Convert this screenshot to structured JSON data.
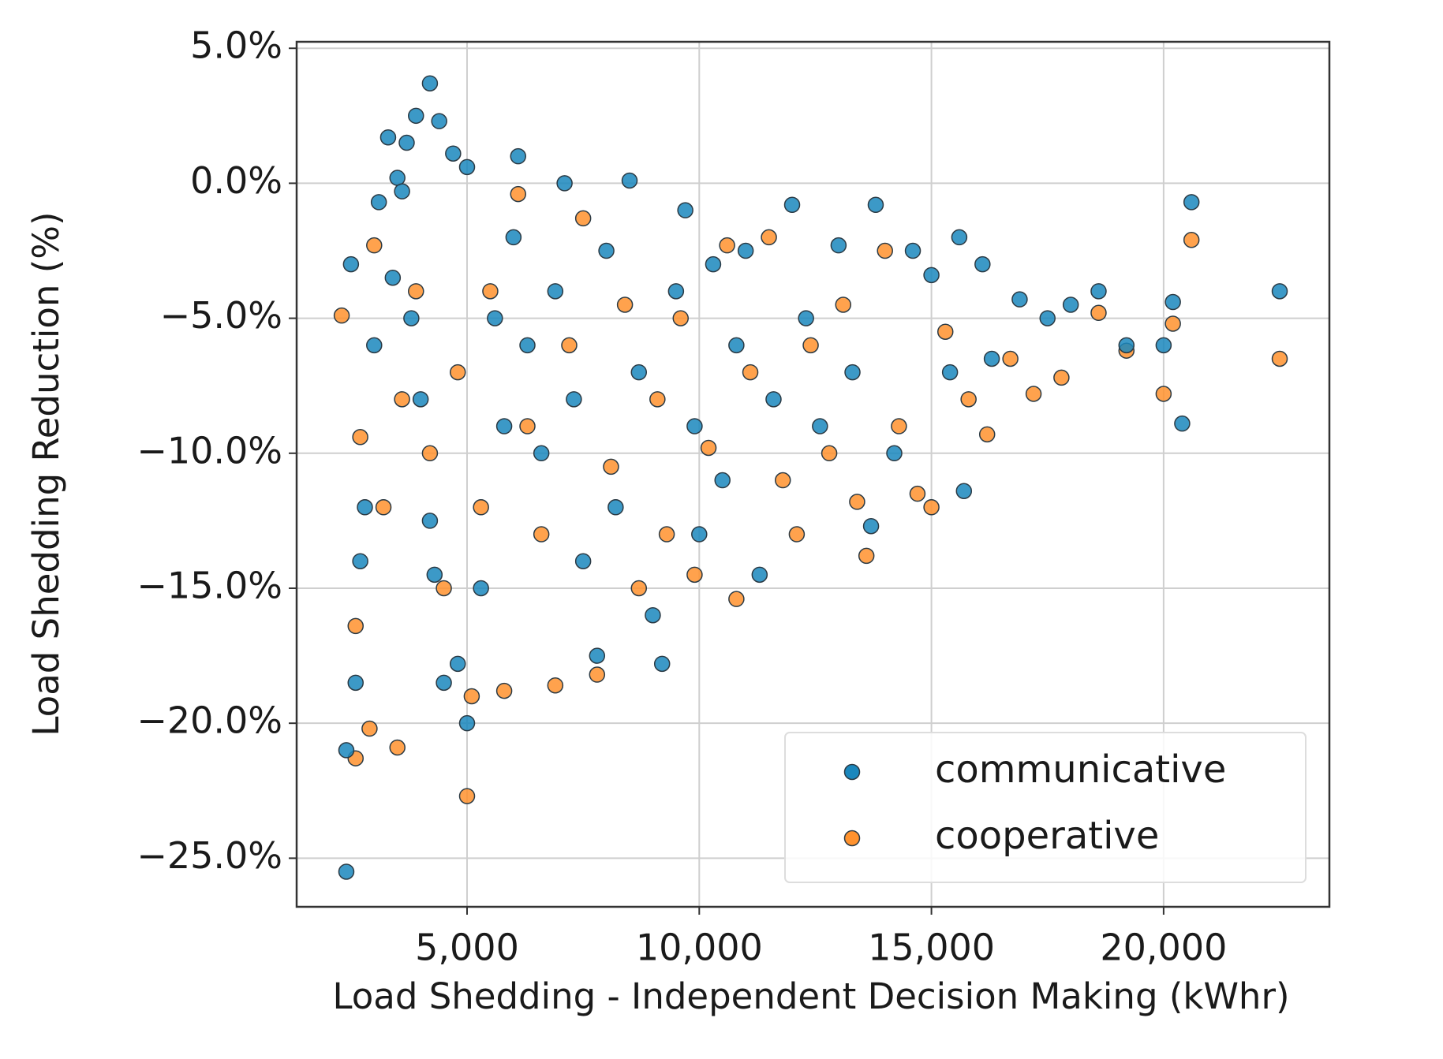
{
  "chart_data": {
    "type": "scatter",
    "xlabel": "Load Shedding - Independent Decision Making (kWhr)",
    "ylabel": "Load Shedding Reduction (%)",
    "xlim": [
      1330,
      23570
    ],
    "ylim": [
      -26.8,
      5.24
    ],
    "xticks": [
      {
        "value": 5000,
        "label": "5,000"
      },
      {
        "value": 10000,
        "label": "10,000"
      },
      {
        "value": 15000,
        "label": "15,000"
      },
      {
        "value": 20000,
        "label": "20,000"
      }
    ],
    "yticks": [
      {
        "value": 5,
        "label": "5.0%"
      },
      {
        "value": 0,
        "label": "0.0%"
      },
      {
        "value": -5,
        "label": "−5.0%"
      },
      {
        "value": -10,
        "label": "−10.0%"
      },
      {
        "value": -15,
        "label": "−15.0%"
      },
      {
        "value": -20,
        "label": "−20.0%"
      },
      {
        "value": -25,
        "label": "−25.0%"
      }
    ],
    "grid": true,
    "legend": "lower right",
    "series": [
      {
        "name": "communicative",
        "color": "#1a87bd",
        "x": [
          2400,
          2400,
          2500,
          2700,
          2600,
          2800,
          3000,
          3100,
          3300,
          3500,
          3600,
          3700,
          3900,
          4200,
          4400,
          4700,
          5000,
          3400,
          3800,
          4000,
          4200,
          4300,
          4500,
          4800,
          5000,
          5300,
          5600,
          5800,
          6000,
          6100,
          6300,
          6600,
          6900,
          7100,
          7300,
          7500,
          7800,
          8000,
          8200,
          8500,
          8700,
          9000,
          9200,
          9500,
          9700,
          9900,
          10000,
          10300,
          10500,
          10800,
          11000,
          11300,
          11600,
          12000,
          12300,
          12600,
          13000,
          13300,
          13700,
          13800,
          14200,
          14600,
          15000,
          15400,
          15600,
          15700,
          16100,
          16300,
          16900,
          17500,
          18000,
          18600,
          19200,
          20000,
          20200,
          20400,
          20600,
          22500
        ],
        "y": [
          -25.5,
          -21,
          -3,
          -14,
          -18.5,
          -12,
          -6,
          -0.7,
          1.7,
          0.2,
          -0.3,
          1.5,
          2.5,
          3.7,
          2.3,
          1.1,
          0.6,
          -3.5,
          -5,
          -8,
          -12.5,
          -14.5,
          -18.5,
          -17.8,
          -20,
          -15,
          -5,
          -9,
          -2,
          1,
          -6,
          -10,
          -4,
          0,
          -8,
          -14,
          -17.5,
          -2.5,
          -12,
          0.1,
          -7,
          -16,
          -17.8,
          -4,
          -1,
          -9,
          -13,
          -3,
          -11,
          -6,
          -2.5,
          -14.5,
          -8,
          -0.8,
          -5,
          -9,
          -2.3,
          -7,
          -12.7,
          -0.8,
          -10,
          -2.5,
          -3.4,
          -7,
          -2,
          -11.4,
          -3,
          -6.5,
          -4.3,
          -5,
          -4.5,
          -4,
          -6,
          -6,
          -4.4,
          -8.9,
          -0.7,
          -4
        ]
      },
      {
        "name": "cooperative",
        "color": "#ff922e",
        "x": [
          2300,
          2600,
          2600,
          2700,
          2900,
          3000,
          3200,
          3500,
          3600,
          3900,
          4200,
          4500,
          4800,
          5000,
          5100,
          5300,
          5500,
          5800,
          6100,
          6300,
          6600,
          6900,
          7200,
          7500,
          7800,
          8100,
          8400,
          8700,
          9100,
          9300,
          9600,
          9900,
          10200,
          10600,
          10800,
          11100,
          11500,
          11800,
          12100,
          12400,
          12800,
          13100,
          13400,
          13600,
          14000,
          14300,
          14700,
          15000,
          15300,
          15800,
          16200,
          16700,
          17200,
          17800,
          18600,
          19200,
          20000,
          20200,
          20600,
          22500
        ],
        "y": [
          -4.9,
          -16.4,
          -21.3,
          -9.4,
          -20.2,
          -2.3,
          -12,
          -20.9,
          -8,
          -4,
          -10,
          -15,
          -7,
          -22.7,
          -19,
          -12,
          -4,
          -18.8,
          -0.4,
          -9,
          -13,
          -18.6,
          -6,
          -1.3,
          -18.2,
          -10.5,
          -4.5,
          -15,
          -8,
          -13,
          -5,
          -14.5,
          -9.8,
          -2.3,
          -15.4,
          -7,
          -2,
          -11,
          -13,
          -6,
          -10,
          -4.5,
          -11.8,
          -13.8,
          -2.5,
          -9,
          -11.5,
          -12,
          -5.5,
          -8,
          -9.3,
          -6.5,
          -7.8,
          -7.2,
          -4.8,
          -6.2,
          -7.8,
          -5.2,
          -2.1,
          -6.5
        ]
      }
    ]
  }
}
